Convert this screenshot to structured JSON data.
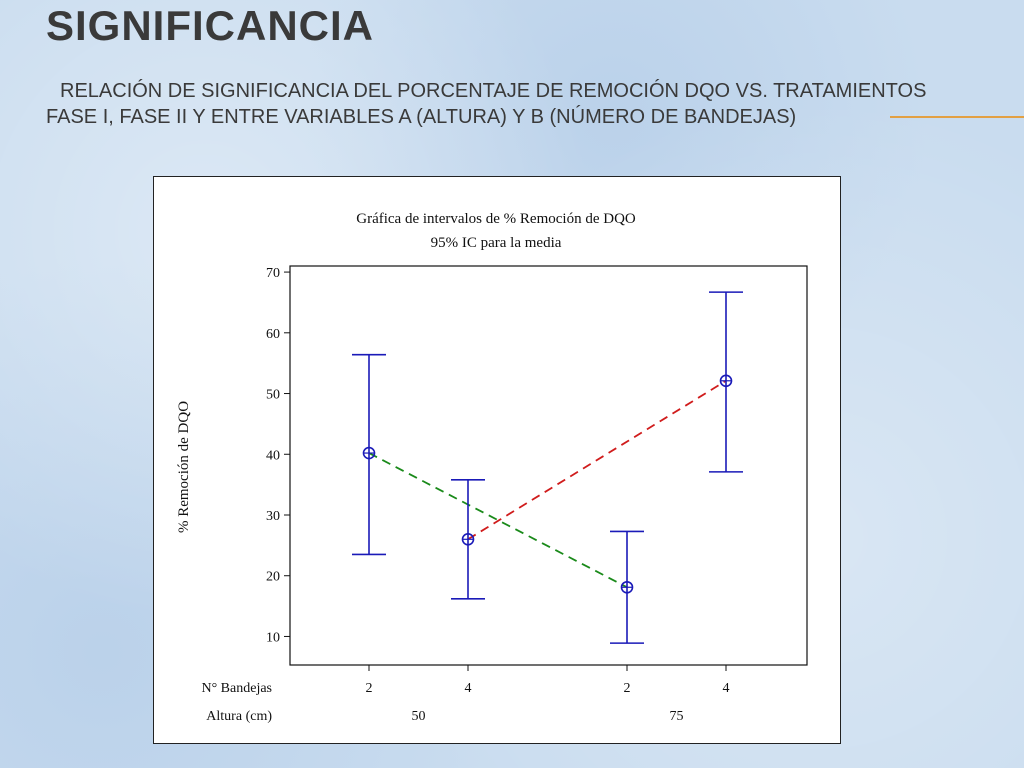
{
  "slide": {
    "title": "Significancia",
    "subtitle": "Relación  de significancia del porcentaje de remoción DQO vs. tratamientos  fase I, fase II y  entre variables A (altura) y B (número de bandejas)"
  },
  "colors": {
    "interval": "#1a1ab8",
    "line_altura_50": "#1a8a1a",
    "line_altura_75": "#d01c1c",
    "accent": "#e2a043"
  },
  "chart_data": {
    "type": "interval",
    "title": "Gráfica de intervalos de % Remoción de DQO",
    "subtitle": "95% IC para la media",
    "ylabel": "% Remoción de DQO",
    "ylim": [
      5.3,
      71
    ],
    "yticks": [
      10,
      20,
      30,
      40,
      50,
      60,
      70
    ],
    "grid": false,
    "row_labels": [
      "N° Bandejas",
      "Altura (cm)"
    ],
    "groups": [
      {
        "altura": "50",
        "bandejas": "2",
        "mean": 40.2,
        "lower": 23.5,
        "upper": 56.4
      },
      {
        "altura": "50",
        "bandejas": "4",
        "mean": 26.0,
        "lower": 16.2,
        "upper": 35.8
      },
      {
        "altura": "75",
        "bandejas": "2",
        "mean": 18.1,
        "lower": 8.9,
        "upper": 27.3
      },
      {
        "altura": "75",
        "bandejas": "4",
        "mean": 52.1,
        "lower": 37.1,
        "upper": 66.7
      }
    ],
    "connecting_lines": [
      {
        "from": 0,
        "to": 2,
        "color": "#1a8a1a",
        "style": "dashed"
      },
      {
        "from": 1,
        "to": 3,
        "color": "#d01c1c",
        "style": "dashed"
      }
    ]
  }
}
